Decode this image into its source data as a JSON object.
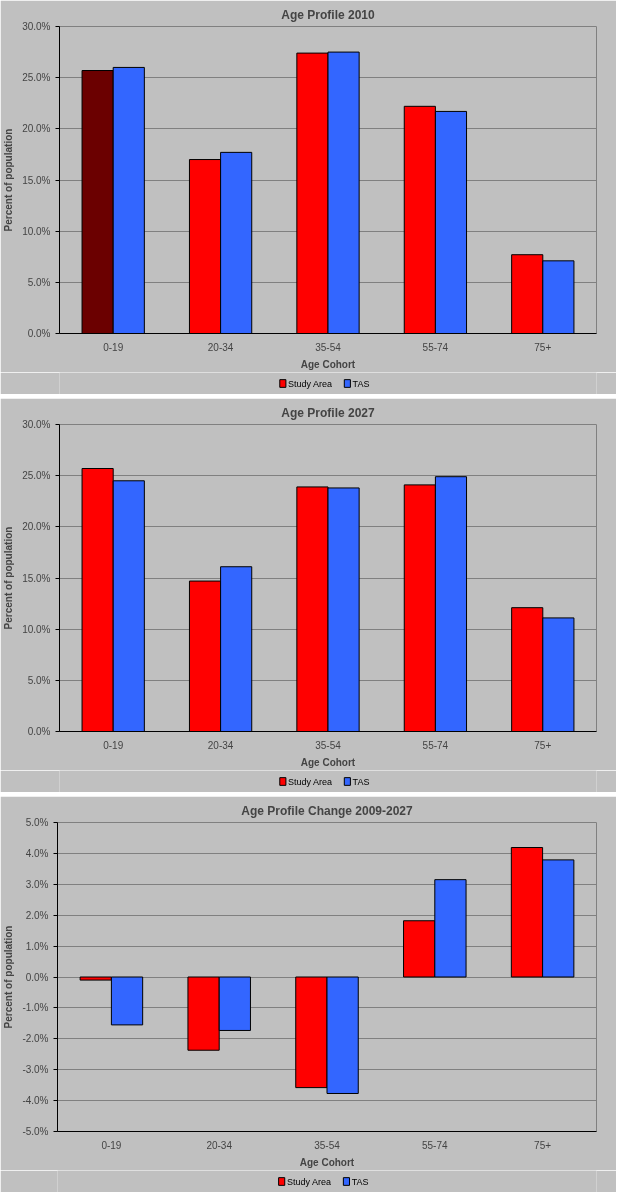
{
  "chart_data": [
    {
      "type": "bar",
      "title": "Age Profile 2010",
      "xlabel": "Age Cohort",
      "ylabel": "Percent of population",
      "categories": [
        "0-19",
        "20-34",
        "35-54",
        "55-74",
        "75+"
      ],
      "series": [
        {
          "name": "Study Area",
          "color": "#ff0000",
          "colors": [
            "#6b0000",
            "#ff0000",
            "#ff0000",
            "#ff0000",
            "#ff0000"
          ],
          "values": [
            25.7,
            17.0,
            27.4,
            22.2,
            7.7
          ]
        },
        {
          "name": "TAS",
          "color": "#3366ff",
          "values": [
            26.0,
            17.7,
            27.5,
            21.7,
            7.1
          ]
        }
      ],
      "ylim": [
        0,
        30
      ],
      "yticks": [
        {
          "value": 0,
          "label": "0.0%"
        },
        {
          "value": 5,
          "label": "5.0%"
        },
        {
          "value": 10,
          "label": "10.0%"
        },
        {
          "value": 15,
          "label": "15.0%"
        },
        {
          "value": 20,
          "label": "20.0%"
        },
        {
          "value": 25,
          "label": "25.0%"
        },
        {
          "value": 30,
          "label": "30.0%"
        }
      ],
      "grid": "y",
      "legend": "bottom"
    },
    {
      "type": "bar",
      "title": "Age Profile 2027",
      "xlabel": "Age Cohort",
      "ylabel": "Percent of population",
      "categories": [
        "0-19",
        "20-34",
        "35-54",
        "55-74",
        "75+"
      ],
      "series": [
        {
          "name": "Study Area",
          "color": "#ff0000",
          "values": [
            25.7,
            14.7,
            23.9,
            24.1,
            12.1
          ]
        },
        {
          "name": "TAS",
          "color": "#3366ff",
          "values": [
            24.5,
            16.1,
            23.8,
            24.9,
            11.1
          ]
        }
      ],
      "ylim": [
        0,
        30
      ],
      "yticks": [
        {
          "value": 0,
          "label": "0.0%"
        },
        {
          "value": 5,
          "label": "5.0%"
        },
        {
          "value": 10,
          "label": "10.0%"
        },
        {
          "value": 15,
          "label": "15.0%"
        },
        {
          "value": 20,
          "label": "20.0%"
        },
        {
          "value": 25,
          "label": "25.0%"
        },
        {
          "value": 30,
          "label": "30.0%"
        }
      ],
      "grid": "y",
      "legend": "bottom"
    },
    {
      "type": "bar",
      "title": "Age Profile Change 2009-2027",
      "xlabel": "Age Cohort",
      "ylabel": "Percent of population",
      "categories": [
        "0-19",
        "20-34",
        "35-54",
        "55-74",
        "75+"
      ],
      "series": [
        {
          "name": "Study Area",
          "color": "#ff0000",
          "values": [
            -0.1,
            -2.37,
            -3.58,
            1.82,
            4.19
          ]
        },
        {
          "name": "TAS",
          "color": "#3366ff",
          "values": [
            -1.55,
            -1.73,
            -3.77,
            3.15,
            3.79
          ]
        }
      ],
      "ylim": [
        -5,
        5
      ],
      "yticks": [
        {
          "value": -5,
          "label": "-5.0%"
        },
        {
          "value": -4,
          "label": "-4.0%"
        },
        {
          "value": -3,
          "label": "-3.0%"
        },
        {
          "value": -2,
          "label": "-2.0%"
        },
        {
          "value": -1,
          "label": "-1.0%"
        },
        {
          "value": 0,
          "label": "0.0%"
        },
        {
          "value": 1,
          "label": "1.0%"
        },
        {
          "value": 2,
          "label": "2.0%"
        },
        {
          "value": 3,
          "label": "3.0%"
        },
        {
          "value": 4,
          "label": "4.0%"
        },
        {
          "value": 5,
          "label": "5.0%"
        }
      ],
      "grid": "y",
      "legend": "bottom"
    }
  ]
}
